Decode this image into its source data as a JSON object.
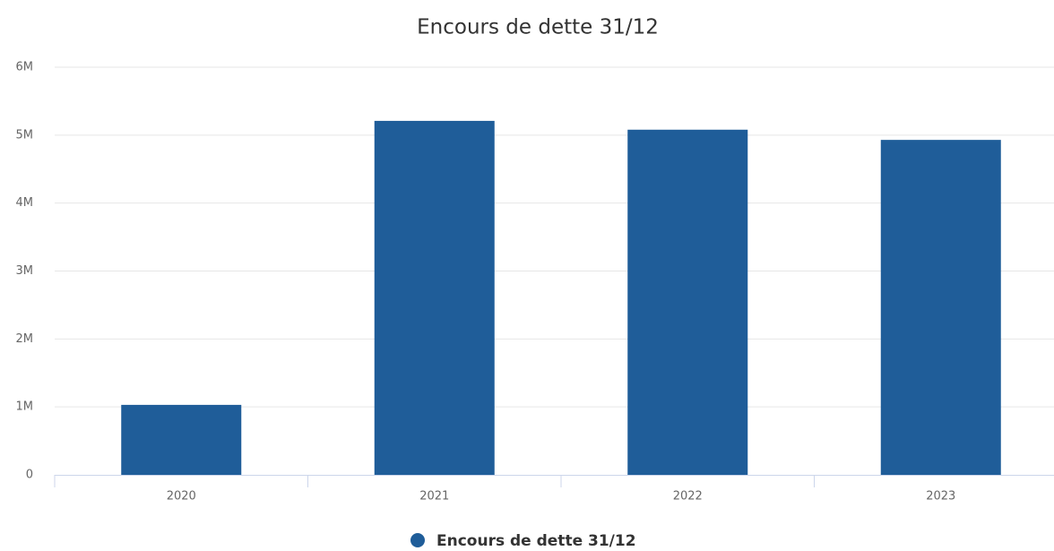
{
  "chart_data": {
    "type": "bar",
    "title": "Encours de dette 31/12",
    "categories": [
      "2020",
      "2021",
      "2022",
      "2023"
    ],
    "series": [
      {
        "name": "Encours de dette 31/12",
        "color": "#1f5d99",
        "values": [
          1030000,
          5210000,
          5080000,
          4930000
        ]
      }
    ],
    "ylim": [
      0,
      6000000
    ],
    "yticks": [
      0,
      {
        "value": 1000000,
        "label": "1M"
      },
      {
        "value": 2000000,
        "label": "2M"
      },
      {
        "value": 3000000,
        "label": "3M"
      },
      {
        "value": 4000000,
        "label": "4M"
      },
      {
        "value": 5000000,
        "label": "5M"
      },
      {
        "value": 6000000,
        "label": "6M"
      }
    ],
    "grid": true,
    "legend": "bottom"
  }
}
